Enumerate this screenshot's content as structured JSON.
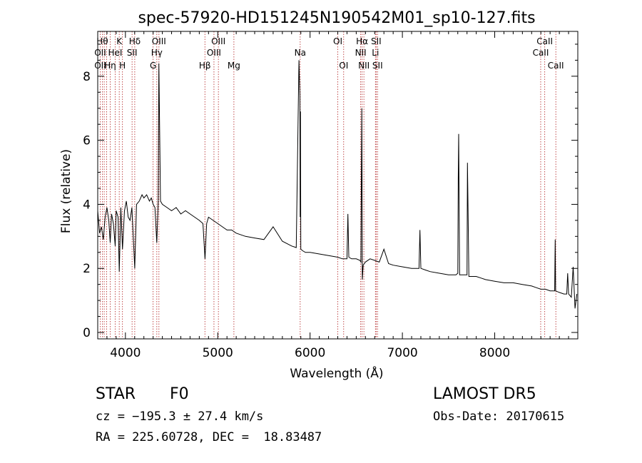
{
  "chart_data": {
    "type": "line",
    "title": "spec-57920-HD151245N190542M01_sp10-127.fits",
    "xlabel": "Wavelength (Å)",
    "ylabel": "Flux (relative)",
    "xlim": [
      3700,
      8900
    ],
    "ylim": [
      -0.2,
      9.4
    ],
    "x_ticks": [
      4000,
      5000,
      6000,
      7000,
      8000
    ],
    "y_ticks": [
      0,
      2,
      4,
      6,
      8
    ],
    "x_tick_labels": [
      "4000",
      "5000",
      "6000",
      "7000",
      "8000"
    ],
    "y_tick_labels": [
      "0",
      "2",
      "4",
      "6",
      "8"
    ],
    "grid": false,
    "legend": "none",
    "colors": {
      "spectrum": "#000000",
      "lines": "#b22222"
    },
    "series": [
      {
        "x": [
          3700,
          3720,
          3740,
          3760,
          3780,
          3800,
          3820,
          3835,
          3850,
          3870,
          3889,
          3900,
          3920,
          3933,
          3950,
          3968,
          3990,
          4010,
          4030,
          4050,
          4070,
          4101,
          4120,
          4150,
          4180,
          4200,
          4230,
          4260,
          4280,
          4300,
          4320,
          4340,
          4355,
          4362,
          4380,
          4400,
          4450,
          4500,
          4550,
          4600,
          4650,
          4700,
          4750,
          4800,
          4840,
          4862,
          4880,
          4900,
          4950,
          5000,
          5050,
          5100,
          5150,
          5200,
          5300,
          5400,
          5500,
          5600,
          5700,
          5800,
          5850,
          5880,
          5890,
          5893,
          5896,
          5900,
          5920,
          5950,
          6000,
          6100,
          6200,
          6300,
          6350,
          6400,
          6410,
          6420,
          6450,
          6500,
          6540,
          6550,
          6560,
          6563,
          6566,
          6575,
          6600,
          6650,
          6700,
          6750,
          6800,
          6850,
          6900,
          7000,
          7100,
          7150,
          7180,
          7190,
          7200,
          7250,
          7300,
          7400,
          7500,
          7580,
          7600,
          7605,
          7610,
          7620,
          7650,
          7680,
          7700,
          7705,
          7710,
          7720,
          7750,
          7800,
          7850,
          7900,
          8000,
          8100,
          8200,
          8300,
          8400,
          8450,
          8500,
          8550,
          8600,
          8640,
          8650,
          8655,
          8660,
          8700,
          8750,
          8780,
          8790,
          8800,
          8830,
          8850,
          8870,
          8890
        ],
        "y": [
          3.8,
          3.1,
          3.3,
          2.9,
          3.6,
          3.9,
          3.5,
          2.8,
          3.7,
          3.4,
          2.7,
          3.8,
          3.6,
          1.9,
          3.9,
          2.6,
          3.8,
          4.1,
          3.6,
          3.5,
          3.9,
          2.0,
          4.0,
          4.1,
          4.3,
          4.2,
          4.3,
          4.1,
          4.2,
          4.0,
          3.9,
          2.8,
          4.1,
          8.4,
          4.1,
          4.0,
          3.9,
          3.8,
          3.9,
          3.7,
          3.8,
          3.7,
          3.6,
          3.5,
          3.4,
          2.3,
          3.4,
          3.6,
          3.5,
          3.4,
          3.3,
          3.2,
          3.2,
          3.1,
          3.0,
          2.95,
          2.9,
          3.3,
          2.85,
          2.7,
          2.65,
          8.5,
          7.4,
          3.6,
          6.9,
          2.6,
          2.55,
          2.5,
          2.5,
          2.45,
          2.4,
          2.35,
          2.3,
          2.3,
          3.7,
          2.35,
          2.3,
          2.3,
          2.25,
          2.2,
          7.0,
          5.3,
          1.65,
          2.1,
          2.2,
          2.3,
          2.25,
          2.2,
          2.6,
          2.15,
          2.1,
          2.05,
          2.0,
          2.0,
          2.0,
          3.2,
          2.0,
          1.95,
          1.9,
          1.85,
          1.8,
          1.8,
          1.85,
          4.8,
          6.2,
          1.8,
          1.8,
          1.8,
          1.8,
          5.3,
          4.1,
          1.75,
          1.75,
          1.75,
          1.7,
          1.65,
          1.6,
          1.55,
          1.55,
          1.5,
          1.45,
          1.4,
          1.35,
          1.35,
          1.3,
          1.3,
          1.3,
          2.9,
          1.3,
          1.25,
          1.2,
          1.2,
          1.85,
          1.2,
          1.1,
          2.05,
          0.75,
          1.2
        ]
      }
    ],
    "lines": [
      {
        "x": 3727,
        "labels": [
          "OII",
          "OII"
        ]
      },
      {
        "x": 3750,
        "labels": [
          "Hθ"
        ]
      },
      {
        "x": 3770,
        "labels": []
      },
      {
        "x": 3797,
        "labels": []
      },
      {
        "x": 3835,
        "labels": [
          "Hη"
        ]
      },
      {
        "x": 3889,
        "labels": [
          "HeI"
        ]
      },
      {
        "x": 3933,
        "labels": [
          "K"
        ]
      },
      {
        "x": 3968,
        "labels": [
          "H"
        ]
      },
      {
        "x": 4072,
        "labels": [
          "SII"
        ]
      },
      {
        "x": 4101,
        "labels": [
          "Hδ"
        ]
      },
      {
        "x": 4300,
        "labels": [
          "G"
        ]
      },
      {
        "x": 4340,
        "labels": [
          "Hγ"
        ]
      },
      {
        "x": 4363,
        "labels": [
          "OIII"
        ]
      },
      {
        "x": 4861,
        "labels": [
          "Hβ"
        ]
      },
      {
        "x": 4959,
        "labels": [
          "OIII"
        ]
      },
      {
        "x": 5007,
        "labels": [
          "OIII"
        ]
      },
      {
        "x": 5175,
        "labels": [
          "Mg"
        ]
      },
      {
        "x": 5893,
        "labels": [
          "Na"
        ]
      },
      {
        "x": 6300,
        "labels": [
          "OI"
        ]
      },
      {
        "x": 6364,
        "labels": [
          "OI"
        ]
      },
      {
        "x": 6548,
        "labels": [
          "NII"
        ]
      },
      {
        "x": 6563,
        "labels": [
          "Hα"
        ]
      },
      {
        "x": 6583,
        "labels": [
          "NII"
        ]
      },
      {
        "x": 6708,
        "labels": [
          "Li"
        ]
      },
      {
        "x": 6716,
        "labels": [
          "SII"
        ]
      },
      {
        "x": 6731,
        "labels": [
          "SII"
        ]
      },
      {
        "x": 8498,
        "labels": [
          "CaII"
        ]
      },
      {
        "x": 8542,
        "labels": [
          "CaII"
        ]
      },
      {
        "x": 8662,
        "labels": [
          "CaII"
        ]
      }
    ]
  },
  "info": {
    "object_class": "STAR",
    "subclass": "F0",
    "survey": "LAMOST DR5",
    "redshift_line": "cz = −195.3 ± 27.4 km/s",
    "obs_date": "Obs-Date: 20170615",
    "coords": "RA = 225.60728, DEC =  18.83487"
  }
}
